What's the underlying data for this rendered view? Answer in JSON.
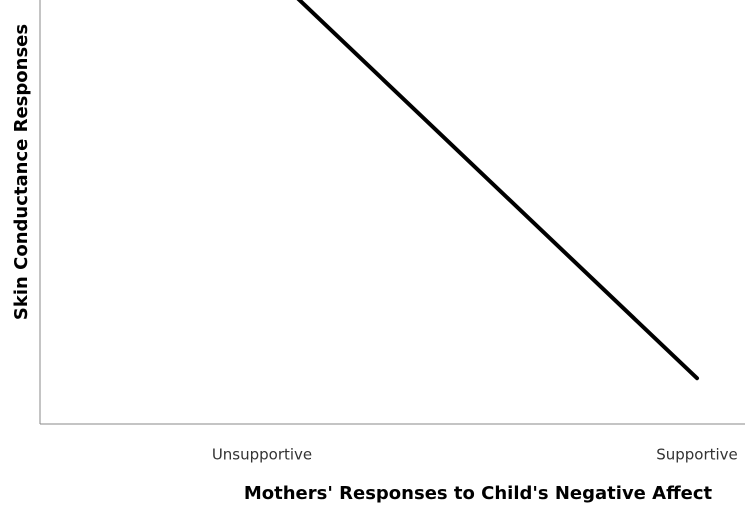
{
  "chart_data": {
    "type": "line",
    "x_label": "Mothers' Responses to Child's Negative Affect",
    "y_label": "Skin Conductance Responses",
    "categories": [
      "Unsupportive",
      "Supportive"
    ],
    "values": [
      108.4,
      10.8
    ],
    "color": "#000000",
    "ylim": [
      0,
      100
    ]
  }
}
